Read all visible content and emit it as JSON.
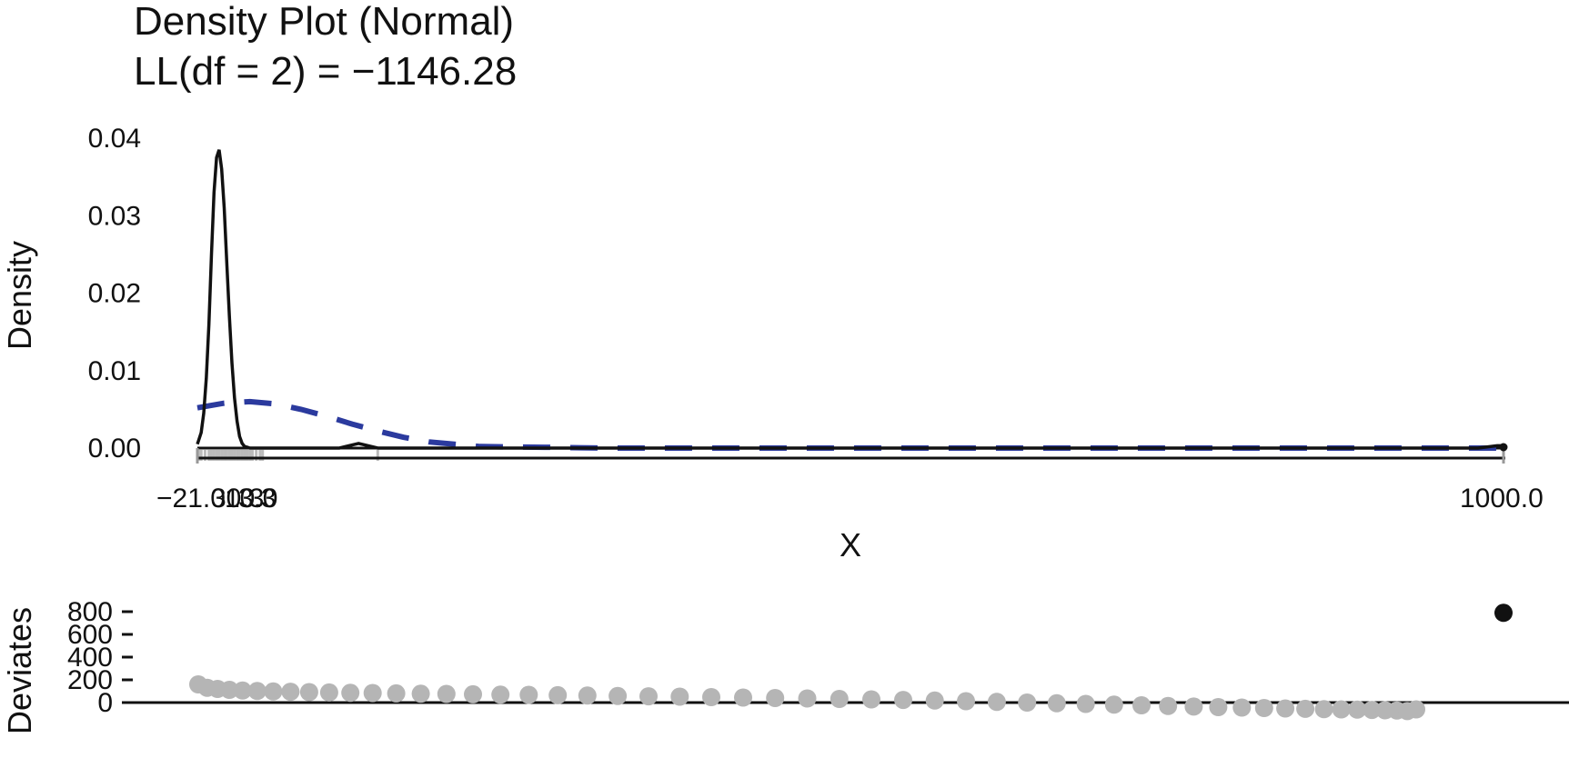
{
  "chart_data": [
    {
      "type": "line",
      "title": "Density Plot (Normal)",
      "subtitle": "LL(df = 2) = −1146.28",
      "xlabel": "X",
      "ylabel": "Density",
      "xlim": [
        -21.0,
        1000.0
      ],
      "ylim": [
        0,
        0.04
      ],
      "ytick_labels": [
        "0.00",
        "0.01",
        "0.02",
        "0.03",
        "0.04"
      ],
      "xtick_labels": [
        "−21.0",
        "30.3",
        "10.0",
        "3.3",
        "1000.0"
      ],
      "grid": false,
      "colors": {
        "empirical": "#111111",
        "normal": "#2b3a9e",
        "rug": "#bbbbbb"
      },
      "series": [
        {
          "style": "solid",
          "x": [
            -21,
            -20,
            -18,
            -16,
            -14,
            -12,
            -10,
            -8,
            -6,
            -4,
            -2,
            0,
            2,
            4,
            6,
            8,
            10,
            12,
            14,
            16,
            18,
            20,
            25,
            30,
            40,
            60,
            90,
            100,
            105,
            110,
            120,
            140,
            200,
            400,
            600,
            800,
            980,
            995,
            1000
          ],
          "y": [
            0.0005,
            0.001,
            0.002,
            0.0045,
            0.009,
            0.016,
            0.025,
            0.033,
            0.0375,
            0.0385,
            0.036,
            0.031,
            0.024,
            0.017,
            0.011,
            0.0065,
            0.0035,
            0.0015,
            0.0006,
            0.0002,
            0.0001,
            0.0,
            0.0,
            0.0,
            0.0,
            0.0,
            0.0,
            0.0004,
            0.0006,
            0.0004,
            0.0,
            0.0,
            0.0,
            0.0,
            0.0,
            0.0,
            0.0,
            0.0003,
            0.0003
          ]
        },
        {
          "style": "dashed",
          "x": [
            -21,
            0,
            20,
            40,
            60,
            80,
            100,
            120,
            140,
            160,
            180,
            200,
            250,
            300,
            400,
            600,
            800,
            1000
          ],
          "y": [
            0.0052,
            0.0058,
            0.006,
            0.0057,
            0.005,
            0.0041,
            0.0031,
            0.0022,
            0.0014,
            0.0008,
            0.0005,
            0.0002,
            0.0001,
            0.0,
            0.0,
            0.0,
            0.0,
            0.0
          ]
        }
      ],
      "rug": [
        -20,
        -18,
        -15,
        -12,
        -10,
        -8,
        -6,
        -4,
        -2,
        0,
        2,
        4,
        6,
        8,
        10,
        12,
        14,
        16,
        18,
        20,
        22,
        25,
        28,
        30,
        120,
        1000
      ]
    },
    {
      "type": "scatter",
      "ylabel": "Deviates",
      "ylim": [
        -60,
        900
      ],
      "ytick_labels": [
        "0",
        "200",
        "400",
        "600",
        "800"
      ],
      "colors": {
        "points": "#b5b5b5",
        "outlier": "#111111",
        "zero_line": "#111111"
      },
      "points": [
        {
          "x": 1,
          "y": 160
        },
        {
          "x": 2,
          "y": 130
        },
        {
          "x": 3,
          "y": 120
        },
        {
          "x": 4,
          "y": 112
        },
        {
          "x": 5,
          "y": 106
        },
        {
          "x": 6,
          "y": 102
        },
        {
          "x": 7,
          "y": 98
        },
        {
          "x": 8,
          "y": 95
        },
        {
          "x": 9,
          "y": 92
        },
        {
          "x": 10,
          "y": 89
        },
        {
          "x": 11,
          "y": 86
        },
        {
          "x": 12,
          "y": 84
        },
        {
          "x": 13,
          "y": 81
        },
        {
          "x": 14,
          "y": 78
        },
        {
          "x": 15,
          "y": 76
        },
        {
          "x": 16,
          "y": 73
        },
        {
          "x": 17,
          "y": 70
        },
        {
          "x": 18,
          "y": 68
        },
        {
          "x": 19,
          "y": 65
        },
        {
          "x": 20,
          "y": 62
        },
        {
          "x": 21,
          "y": 58
        },
        {
          "x": 22,
          "y": 55
        },
        {
          "x": 23,
          "y": 52
        },
        {
          "x": 24,
          "y": 48
        },
        {
          "x": 25,
          "y": 44
        },
        {
          "x": 26,
          "y": 40
        },
        {
          "x": 27,
          "y": 36
        },
        {
          "x": 28,
          "y": 32
        },
        {
          "x": 29,
          "y": 28
        },
        {
          "x": 30,
          "y": 23
        },
        {
          "x": 31,
          "y": 18
        },
        {
          "x": 32,
          "y": 12
        },
        {
          "x": 33,
          "y": 6
        },
        {
          "x": 34,
          "y": 0
        },
        {
          "x": 35,
          "y": -6
        },
        {
          "x": 36,
          "y": -12
        },
        {
          "x": 37,
          "y": -18
        },
        {
          "x": 38,
          "y": -24
        },
        {
          "x": 39,
          "y": -30
        },
        {
          "x": 40,
          "y": -35
        },
        {
          "x": 41,
          "y": -40
        },
        {
          "x": 42,
          "y": -44
        },
        {
          "x": 43,
          "y": -48
        },
        {
          "x": 44,
          "y": -52
        },
        {
          "x": 45,
          "y": -55
        },
        {
          "x": 46,
          "y": -58
        },
        {
          "x": 47,
          "y": -60
        },
        {
          "x": 48,
          "y": -62
        },
        {
          "x": 49,
          "y": -65
        },
        {
          "x": 50,
          "y": -68
        },
        {
          "x": 51,
          "y": -70
        },
        {
          "x": 52,
          "y": -75
        },
        {
          "x": 53,
          "y": -60
        },
        {
          "x": 54,
          "y": 790,
          "outlier": true
        }
      ]
    }
  ]
}
